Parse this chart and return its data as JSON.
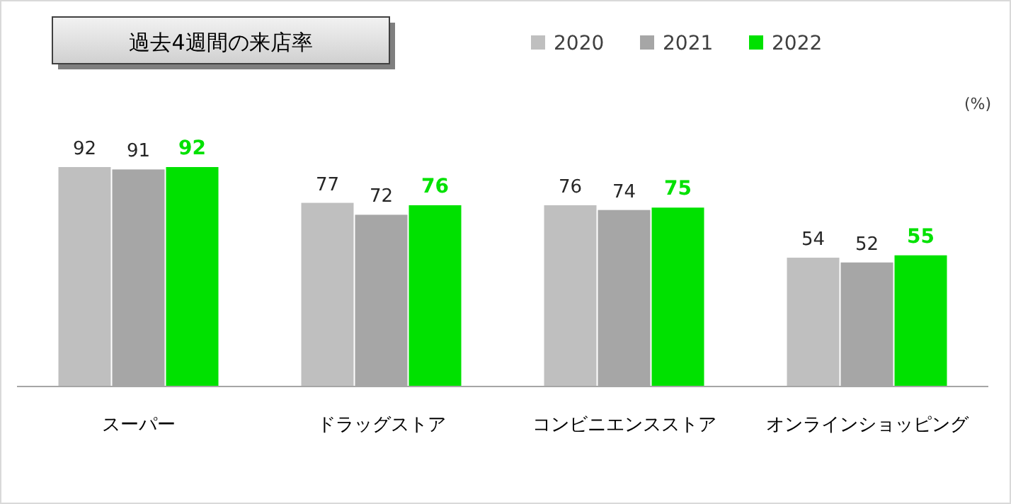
{
  "chart_data": {
    "type": "bar",
    "title": "過去4週間の来店率",
    "categories": [
      "スーパー",
      "ドラッグストア",
      "コンビニエンスストア",
      "オンラインショッピング"
    ],
    "series": [
      {
        "name": "2020",
        "color": "#bfbfbf",
        "values": [
          92,
          77,
          76,
          54
        ]
      },
      {
        "name": "2021",
        "color": "#a6a6a6",
        "values": [
          91,
          72,
          74,
          52
        ]
      },
      {
        "name": "2022",
        "color": "#00e100",
        "values": [
          92,
          76,
          75,
          55
        ]
      }
    ],
    "data_labels": true,
    "legend": "top right",
    "annotations": [
      "(%)"
    ]
  }
}
